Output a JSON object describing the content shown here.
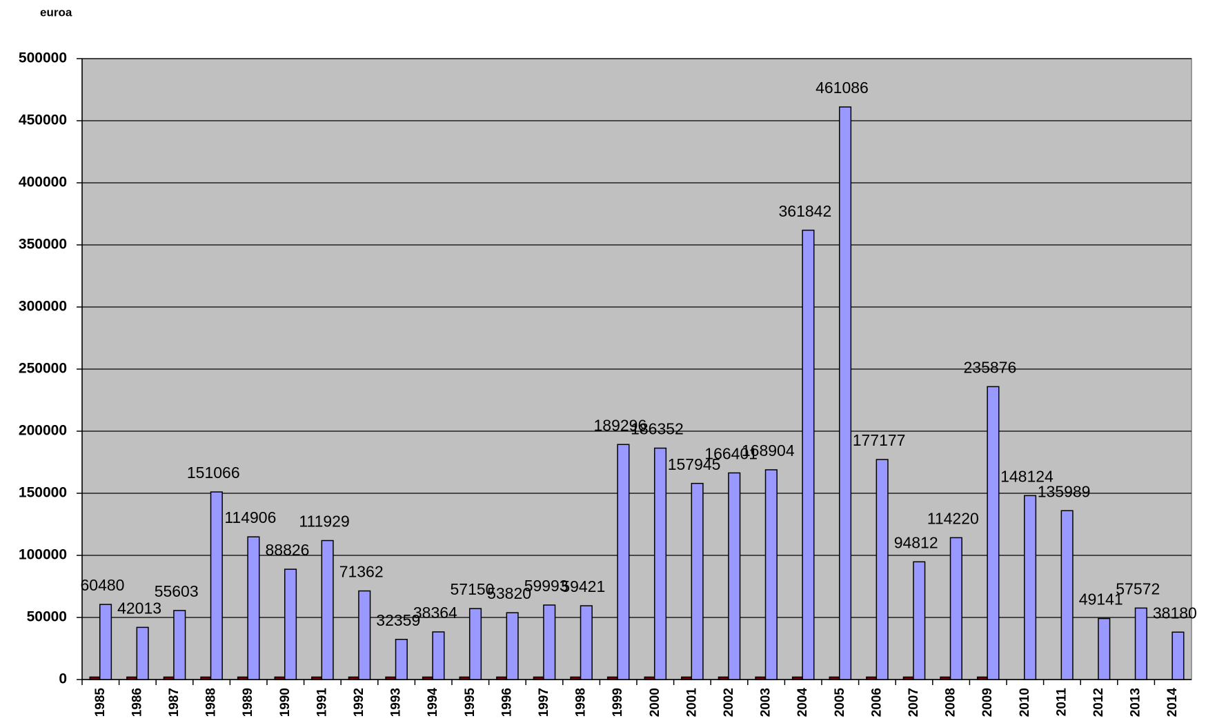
{
  "chart_data": {
    "type": "bar",
    "y_axis_label": "euroa",
    "categories": [
      "1985",
      "1986",
      "1987",
      "1988",
      "1989",
      "1990",
      "1991",
      "1992",
      "1993",
      "1994",
      "1995",
      "1996",
      "1997",
      "1998",
      "1999",
      "2000",
      "2001",
      "2002",
      "2003",
      "2004",
      "2005",
      "2006",
      "2007",
      "2008",
      "2009",
      "2010",
      "2011",
      "2012",
      "2013",
      "2014"
    ],
    "series": [
      {
        "color": "#800000",
        "values": [
          2000,
          2000,
          2000,
          2000,
          2000,
          2000,
          2000,
          2000,
          2000,
          2000,
          2000,
          2000,
          2000,
          2000,
          2000,
          2000,
          2000,
          2000,
          2000,
          2000,
          2000,
          2000,
          2000,
          2000,
          2000,
          null,
          null,
          null,
          null,
          null
        ]
      },
      {
        "color": "#9999ff",
        "values": [
          60480,
          42013,
          55603,
          151066,
          114906,
          88826,
          111929,
          71362,
          32359,
          38364,
          57150,
          53820,
          59993,
          59421,
          189296,
          186352,
          157945,
          166401,
          168904,
          361842,
          461086,
          177177,
          94812,
          114220,
          235876,
          148124,
          135989,
          49141,
          57572,
          38180
        ],
        "show_value_labels": true
      }
    ],
    "ylim": [
      0,
      500000
    ],
    "yticks": [
      0,
      50000,
      100000,
      150000,
      200000,
      250000,
      300000,
      350000,
      400000,
      450000,
      500000
    ],
    "grid": true,
    "plot_background": "#c0c0c0"
  }
}
